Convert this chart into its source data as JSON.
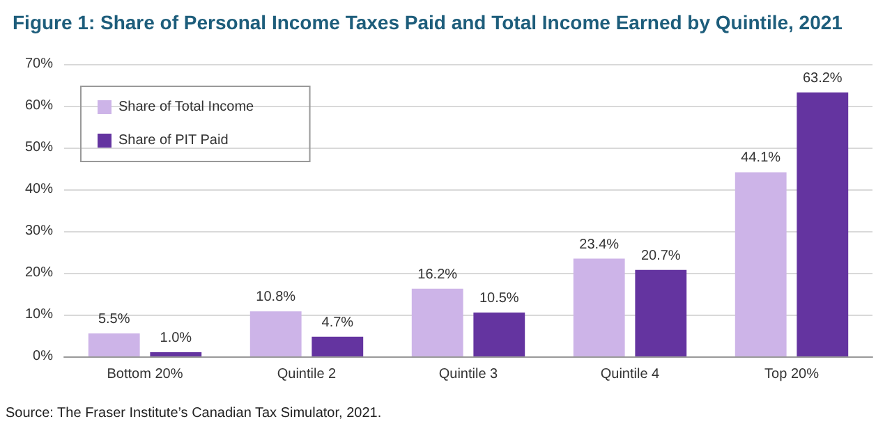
{
  "chart_data": {
    "type": "bar",
    "title": "Figure 1: Share of Personal Income Taxes Paid and Total Income Earned by Quintile, 2021",
    "categories": [
      "Bottom 20%",
      "Quintile 2",
      "Quintile 3",
      "Quintile 4",
      "Top 20%"
    ],
    "series": [
      {
        "name": "Share of Total Income",
        "color": "#cdb4e8",
        "values": [
          5.5,
          10.8,
          16.2,
          23.4,
          44.1
        ],
        "value_labels": [
          "5.5%",
          "10.8%",
          "16.2%",
          "23.4%",
          "44.1%"
        ]
      },
      {
        "name": "Share of PIT Paid",
        "color": "#6434a0",
        "values": [
          1.0,
          4.7,
          10.5,
          20.7,
          63.2
        ],
        "value_labels": [
          "1.0%",
          "4.7%",
          "10.5%",
          "20.7%",
          "63.2%"
        ]
      }
    ],
    "ylim": [
      0,
      70
    ],
    "yticks": [
      {
        "value": 0,
        "label": "0%"
      },
      {
        "value": 10,
        "label": "10%"
      },
      {
        "value": 20,
        "label": "20%"
      },
      {
        "value": 30,
        "label": "30%"
      },
      {
        "value": 40,
        "label": "40%"
      },
      {
        "value": 50,
        "label": "50%"
      },
      {
        "value": 60,
        "label": "60%"
      },
      {
        "value": 70,
        "label": "70%"
      }
    ],
    "grid": "y",
    "legend": "top left",
    "annotations": [
      "Source: The Fraser Institute’s Canadian Tax Simulator, 2021."
    ]
  }
}
